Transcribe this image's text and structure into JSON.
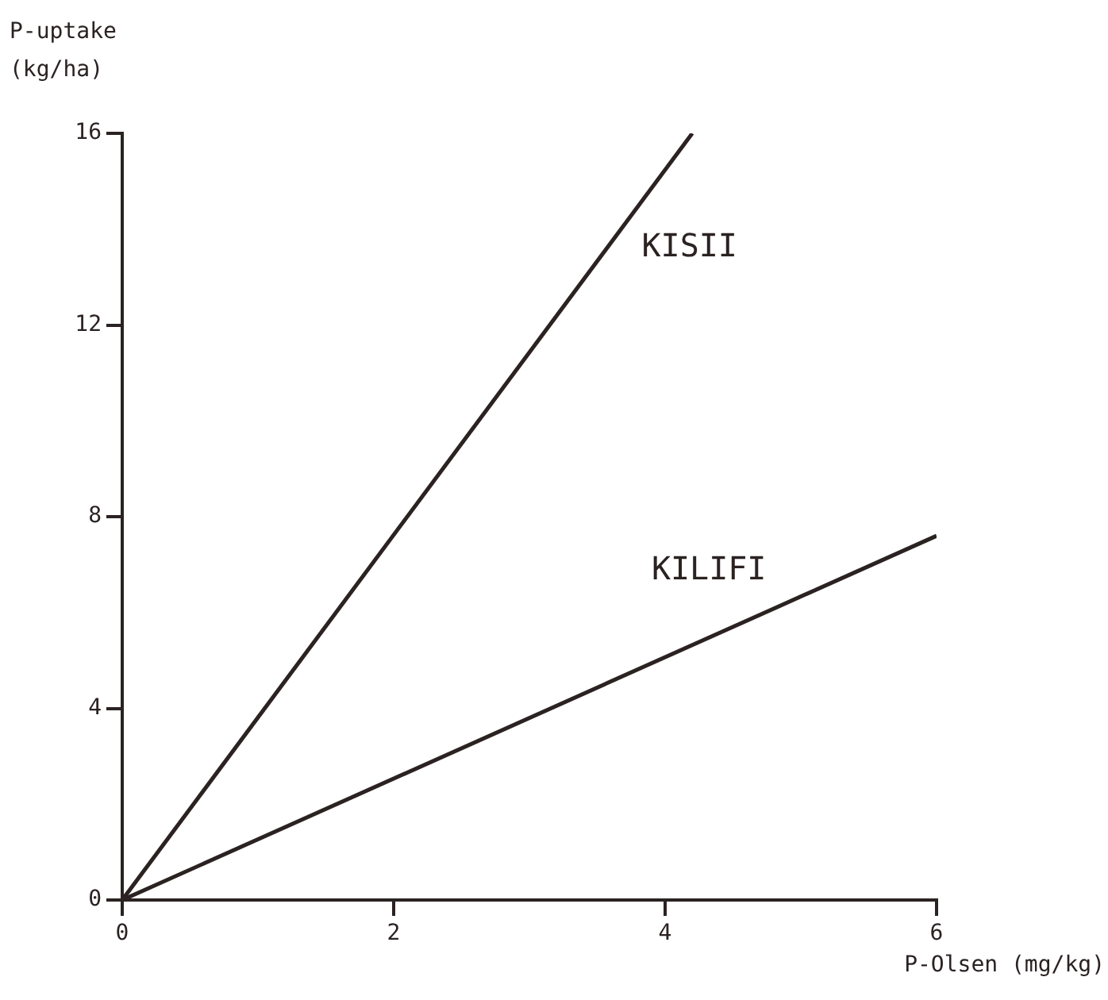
{
  "chart_data": {
    "type": "line",
    "xlabel": "P-Olsen (mg/kg)",
    "ylabel": "P-uptake (kg/ha)",
    "xlim": [
      0,
      6
    ],
    "xticks": [
      0,
      2,
      4,
      6
    ],
    "ylim": [
      0,
      16
    ],
    "yticks": [
      0,
      4,
      8,
      12,
      16
    ],
    "grid": false,
    "marker": "none",
    "line_style": "solid",
    "series": [
      {
        "name": "KISII",
        "color": "#2b2222",
        "x": [
          0,
          4.2
        ],
        "values": [
          0,
          16
        ]
      },
      {
        "name": "KILIFI",
        "color": "#2b2222",
        "x": [
          0,
          6
        ],
        "values": [
          0,
          7.6
        ]
      }
    ]
  }
}
